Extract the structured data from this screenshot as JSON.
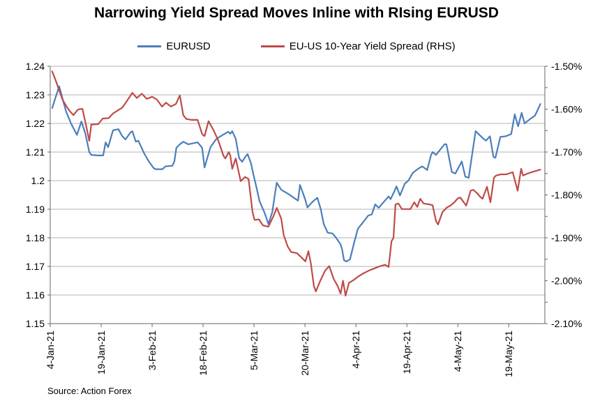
{
  "title": "Narrowing Yield Spread Moves Inline with RIsing EURUSD",
  "source": "Source: Action Forex",
  "legend": [
    {
      "label": "EURUSD",
      "color": "#4A7EBB"
    },
    {
      "label": "EU-US 10-Year Yield Spread (RHS)",
      "color": "#BE4B48"
    }
  ],
  "colors": {
    "gridline": "#b3b3b3",
    "axis": "#666666",
    "text": "#000000"
  },
  "chart_data": {
    "type": "line",
    "title": "Narrowing Yield Spread Moves Inline with RIsing EURUSD",
    "xlabel": "",
    "x_note": "t is fractional position along the date axis; t=0 is 4-Jan-21, t=1 is approx 29-May-21",
    "x_ticks": [
      {
        "label": "4-Jan-21",
        "t": 0.0
      },
      {
        "label": "19-Jan-21",
        "t": 0.103
      },
      {
        "label": "3-Feb-21",
        "t": 0.206
      },
      {
        "label": "18-Feb-21",
        "t": 0.309
      },
      {
        "label": "5-Mar-21",
        "t": 0.412
      },
      {
        "label": "20-Mar-21",
        "t": 0.515
      },
      {
        "label": "4-Apr-21",
        "t": 0.618
      },
      {
        "label": "19-Apr-21",
        "t": 0.721
      },
      {
        "label": "4-May-21",
        "t": 0.824
      },
      {
        "label": "19-May-21",
        "t": 0.927
      }
    ],
    "left_axis": {
      "ylim": [
        1.15,
        1.24
      ],
      "ticks": [
        {
          "label": "1.24",
          "v": 1.24
        },
        {
          "label": "1.23",
          "v": 1.23
        },
        {
          "label": "1.22",
          "v": 1.22
        },
        {
          "label": "1.21",
          "v": 1.21
        },
        {
          "label": "1.2",
          "v": 1.2
        },
        {
          "label": "1.19",
          "v": 1.19
        },
        {
          "label": "1.18",
          "v": 1.18
        },
        {
          "label": "1.17",
          "v": 1.17
        },
        {
          "label": "1.16",
          "v": 1.16
        },
        {
          "label": "1.15",
          "v": 1.15
        }
      ]
    },
    "right_axis": {
      "ylim": [
        -2.1,
        -1.5
      ],
      "minor_tick_step": 0.05,
      "ticks": [
        {
          "label": "-1.50%",
          "v": -1.5
        },
        {
          "label": "-1.60%",
          "v": -1.6
        },
        {
          "label": "-1.70%",
          "v": -1.7
        },
        {
          "label": "-1.80%",
          "v": -1.8
        },
        {
          "label": "-1.90%",
          "v": -1.9
        },
        {
          "label": "-2.00%",
          "v": -2.0
        },
        {
          "label": "-2.10%",
          "v": -2.1
        }
      ]
    },
    "grid": true,
    "legend_position": "top",
    "series": [
      {
        "name": "EURUSD",
        "axis": "left",
        "color": "#4A7EBB",
        "points": [
          [
            0.004,
            1.2254
          ],
          [
            0.018,
            1.233
          ],
          [
            0.032,
            1.2242
          ],
          [
            0.042,
            1.22
          ],
          [
            0.054,
            1.216
          ],
          [
            0.063,
            1.2207
          ],
          [
            0.071,
            1.2165
          ],
          [
            0.079,
            1.21
          ],
          [
            0.083,
            1.209
          ],
          [
            0.096,
            1.2088
          ],
          [
            0.107,
            1.2088
          ],
          [
            0.112,
            1.2134
          ],
          [
            0.117,
            1.2117
          ],
          [
            0.127,
            1.2176
          ],
          [
            0.138,
            1.218
          ],
          [
            0.145,
            1.2157
          ],
          [
            0.152,
            1.2144
          ],
          [
            0.162,
            1.2168
          ],
          [
            0.166,
            1.2173
          ],
          [
            0.173,
            1.2136
          ],
          [
            0.178,
            1.214
          ],
          [
            0.19,
            1.2095
          ],
          [
            0.199,
            1.2068
          ],
          [
            0.209,
            1.2044
          ],
          [
            0.213,
            1.204
          ],
          [
            0.227,
            1.204
          ],
          [
            0.233,
            1.205
          ],
          [
            0.247,
            1.2052
          ],
          [
            0.251,
            1.2068
          ],
          [
            0.255,
            1.2115
          ],
          [
            0.262,
            1.2127
          ],
          [
            0.269,
            1.2136
          ],
          [
            0.279,
            1.2127
          ],
          [
            0.298,
            1.2134
          ],
          [
            0.307,
            1.2115
          ],
          [
            0.312,
            1.2046
          ],
          [
            0.324,
            1.2117
          ],
          [
            0.336,
            1.2146
          ],
          [
            0.35,
            1.2161
          ],
          [
            0.36,
            1.2171
          ],
          [
            0.364,
            1.2164
          ],
          [
            0.368,
            1.2173
          ],
          [
            0.375,
            1.2146
          ],
          [
            0.382,
            1.2078
          ],
          [
            0.388,
            1.2066
          ],
          [
            0.395,
            1.2085
          ],
          [
            0.399,
            1.2093
          ],
          [
            0.406,
            1.2059
          ],
          [
            0.41,
            1.2027
          ],
          [
            0.418,
            1.1968
          ],
          [
            0.423,
            1.1929
          ],
          [
            0.432,
            1.1893
          ],
          [
            0.437,
            1.187
          ],
          [
            0.441,
            1.1848
          ],
          [
            0.449,
            1.189
          ],
          [
            0.454,
            1.195
          ],
          [
            0.458,
            1.1993
          ],
          [
            0.467,
            1.1968
          ],
          [
            0.481,
            1.1954
          ],
          [
            0.495,
            1.1937
          ],
          [
            0.501,
            1.193
          ],
          [
            0.505,
            1.1985
          ],
          [
            0.515,
            1.1937
          ],
          [
            0.52,
            1.1906
          ],
          [
            0.527,
            1.192
          ],
          [
            0.533,
            1.193
          ],
          [
            0.54,
            1.194
          ],
          [
            0.547,
            1.19
          ],
          [
            0.553,
            1.1848
          ],
          [
            0.561,
            1.1818
          ],
          [
            0.571,
            1.1815
          ],
          [
            0.578,
            1.18
          ],
          [
            0.587,
            1.1777
          ],
          [
            0.59,
            1.176
          ],
          [
            0.594,
            1.1722
          ],
          [
            0.599,
            1.1717
          ],
          [
            0.606,
            1.1725
          ],
          [
            0.614,
            1.178
          ],
          [
            0.622,
            1.1832
          ],
          [
            0.635,
            1.186
          ],
          [
            0.643,
            1.1878
          ],
          [
            0.65,
            1.1882
          ],
          [
            0.657,
            1.1917
          ],
          [
            0.664,
            1.1905
          ],
          [
            0.674,
            1.1925
          ],
          [
            0.684,
            1.1945
          ],
          [
            0.688,
            1.1935
          ],
          [
            0.695,
            1.196
          ],
          [
            0.7,
            1.198
          ],
          [
            0.707,
            1.1948
          ],
          [
            0.717,
            1.199
          ],
          [
            0.724,
            1.2
          ],
          [
            0.733,
            1.2027
          ],
          [
            0.745,
            1.2043
          ],
          [
            0.752,
            1.205
          ],
          [
            0.762,
            1.2037
          ],
          [
            0.77,
            1.209
          ],
          [
            0.773,
            1.21
          ],
          [
            0.78,
            1.209
          ],
          [
            0.797,
            1.2127
          ],
          [
            0.801,
            1.2127
          ],
          [
            0.812,
            1.203
          ],
          [
            0.819,
            1.2025
          ],
          [
            0.832,
            1.2067
          ],
          [
            0.839,
            1.2014
          ],
          [
            0.846,
            1.201
          ],
          [
            0.86,
            1.2173
          ],
          [
            0.876,
            1.2146
          ],
          [
            0.881,
            1.214
          ],
          [
            0.889,
            1.2155
          ],
          [
            0.896,
            1.2083
          ],
          [
            0.9,
            1.208
          ],
          [
            0.91,
            1.2153
          ],
          [
            0.921,
            1.2155
          ],
          [
            0.932,
            1.2163
          ],
          [
            0.939,
            1.2232
          ],
          [
            0.946,
            1.219
          ],
          [
            0.953,
            1.2237
          ],
          [
            0.959,
            1.22
          ],
          [
            0.97,
            1.2215
          ],
          [
            0.98,
            1.2227
          ],
          [
            0.991,
            1.2268
          ]
        ]
      },
      {
        "name": "EU-US 10-Year Yield Spread (RHS)",
        "axis": "right",
        "color": "#BE4B48",
        "points": [
          [
            0.004,
            -1.512
          ],
          [
            0.011,
            -1.533
          ],
          [
            0.018,
            -1.556
          ],
          [
            0.025,
            -1.578
          ],
          [
            0.032,
            -1.592
          ],
          [
            0.039,
            -1.604
          ],
          [
            0.047,
            -1.614
          ],
          [
            0.056,
            -1.601
          ],
          [
            0.065,
            -1.599
          ],
          [
            0.072,
            -1.635
          ],
          [
            0.079,
            -1.674
          ],
          [
            0.083,
            -1.636
          ],
          [
            0.097,
            -1.635
          ],
          [
            0.106,
            -1.622
          ],
          [
            0.118,
            -1.621
          ],
          [
            0.127,
            -1.61
          ],
          [
            0.138,
            -1.602
          ],
          [
            0.145,
            -1.597
          ],
          [
            0.152,
            -1.586
          ],
          [
            0.166,
            -1.562
          ],
          [
            0.175,
            -1.574
          ],
          [
            0.185,
            -1.564
          ],
          [
            0.195,
            -1.576
          ],
          [
            0.206,
            -1.571
          ],
          [
            0.216,
            -1.578
          ],
          [
            0.226,
            -1.594
          ],
          [
            0.234,
            -1.585
          ],
          [
            0.244,
            -1.594
          ],
          [
            0.254,
            -1.588
          ],
          [
            0.262,
            -1.568
          ],
          [
            0.269,
            -1.614
          ],
          [
            0.275,
            -1.623
          ],
          [
            0.286,
            -1.625
          ],
          [
            0.298,
            -1.625
          ],
          [
            0.307,
            -1.658
          ],
          [
            0.312,
            -1.663
          ],
          [
            0.32,
            -1.628
          ],
          [
            0.331,
            -1.651
          ],
          [
            0.34,
            -1.674
          ],
          [
            0.35,
            -1.708
          ],
          [
            0.354,
            -1.715
          ],
          [
            0.361,
            -1.7
          ],
          [
            0.364,
            -1.708
          ],
          [
            0.368,
            -1.739
          ],
          [
            0.375,
            -1.715
          ],
          [
            0.385,
            -1.768
          ],
          [
            0.394,
            -1.758
          ],
          [
            0.401,
            -1.763
          ],
          [
            0.409,
            -1.84
          ],
          [
            0.413,
            -1.858
          ],
          [
            0.422,
            -1.857
          ],
          [
            0.43,
            -1.871
          ],
          [
            0.441,
            -1.874
          ],
          [
            0.451,
            -1.85
          ],
          [
            0.458,
            -1.83
          ],
          [
            0.467,
            -1.855
          ],
          [
            0.472,
            -1.893
          ],
          [
            0.48,
            -1.92
          ],
          [
            0.487,
            -1.933
          ],
          [
            0.499,
            -1.936
          ],
          [
            0.509,
            -1.947
          ],
          [
            0.516,
            -1.955
          ],
          [
            0.522,
            -1.931
          ],
          [
            0.527,
            -1.96
          ],
          [
            0.533,
            -2.012
          ],
          [
            0.537,
            -2.025
          ],
          [
            0.546,
            -2.0
          ],
          [
            0.556,
            -1.976
          ],
          [
            0.564,
            -1.966
          ],
          [
            0.573,
            -1.996
          ],
          [
            0.581,
            -2.012
          ],
          [
            0.587,
            -2.03
          ],
          [
            0.592,
            -2.0
          ],
          [
            0.597,
            -2.035
          ],
          [
            0.604,
            -2.005
          ],
          [
            0.614,
            -1.998
          ],
          [
            0.623,
            -1.99
          ],
          [
            0.633,
            -1.983
          ],
          [
            0.645,
            -1.976
          ],
          [
            0.656,
            -1.971
          ],
          [
            0.667,
            -1.966
          ],
          [
            0.677,
            -1.963
          ],
          [
            0.684,
            -1.968
          ],
          [
            0.69,
            -1.908
          ],
          [
            0.694,
            -1.9
          ],
          [
            0.698,
            -1.822
          ],
          [
            0.704,
            -1.82
          ],
          [
            0.711,
            -1.833
          ],
          [
            0.728,
            -1.833
          ],
          [
            0.736,
            -1.817
          ],
          [
            0.742,
            -1.828
          ],
          [
            0.748,
            -1.809
          ],
          [
            0.755,
            -1.82
          ],
          [
            0.766,
            -1.822
          ],
          [
            0.773,
            -1.824
          ],
          [
            0.78,
            -1.861
          ],
          [
            0.784,
            -1.869
          ],
          [
            0.793,
            -1.84
          ],
          [
            0.801,
            -1.83
          ],
          [
            0.81,
            -1.824
          ],
          [
            0.817,
            -1.817
          ],
          [
            0.824,
            -1.808
          ],
          [
            0.829,
            -1.806
          ],
          [
            0.841,
            -1.825
          ],
          [
            0.85,
            -1.79
          ],
          [
            0.855,
            -1.788
          ],
          [
            0.863,
            -1.796
          ],
          [
            0.869,
            -1.804
          ],
          [
            0.874,
            -1.809
          ],
          [
            0.883,
            -1.781
          ],
          [
            0.89,
            -1.817
          ],
          [
            0.897,
            -1.76
          ],
          [
            0.901,
            -1.755
          ],
          [
            0.911,
            -1.752
          ],
          [
            0.922,
            -1.752
          ],
          [
            0.935,
            -1.747
          ],
          [
            0.945,
            -1.79
          ],
          [
            0.952,
            -1.739
          ],
          [
            0.956,
            -1.755
          ],
          [
            0.965,
            -1.75
          ],
          [
            0.973,
            -1.747
          ],
          [
            0.982,
            -1.744
          ],
          [
            0.991,
            -1.741
          ]
        ]
      }
    ]
  }
}
